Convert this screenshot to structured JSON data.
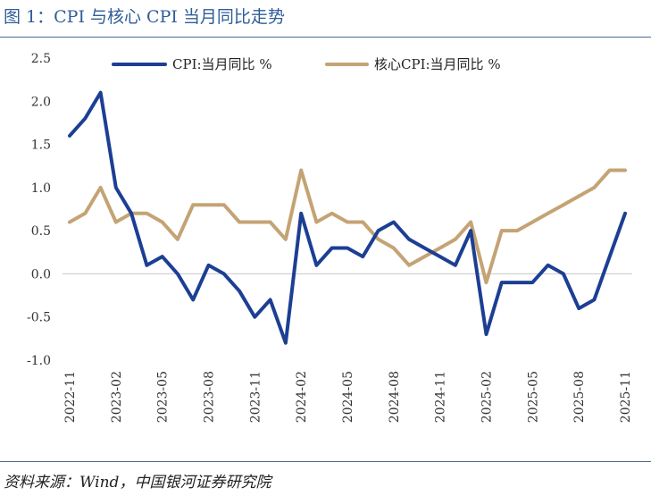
{
  "figure": {
    "title": "图 1：CPI 与核心 CPI 当月同比走势",
    "source": "资料来源：Wind，中国银河证券研究院"
  },
  "chart_data": {
    "type": "line",
    "title": "CPI 与核心 CPI 当月同比走势",
    "xlabel": "",
    "ylabel": "",
    "ylim": [
      -1.0,
      2.5
    ],
    "yticks": [
      -1.0,
      -0.5,
      0.0,
      0.5,
      1.0,
      1.5,
      2.0,
      2.5
    ],
    "ytick_labels": [
      "-1.0",
      "-0.5",
      "0.0",
      "0.5",
      "1.0",
      "1.5",
      "2.0",
      "2.5"
    ],
    "grid": false,
    "legend_position": "top",
    "x": [
      "2022-11",
      "2022-12",
      "2023-01",
      "2023-02",
      "2023-03",
      "2023-04",
      "2023-05",
      "2023-06",
      "2023-07",
      "2023-08",
      "2023-09",
      "2023-10",
      "2023-11",
      "2023-12",
      "2024-01",
      "2024-02",
      "2024-03",
      "2024-04",
      "2024-05",
      "2024-06",
      "2024-07",
      "2024-08",
      "2024-09",
      "2024-10",
      "2024-11",
      "2024-12",
      "2025-01",
      "2025-02",
      "2025-03",
      "2025-04",
      "2025-05",
      "2025-06",
      "2025-07",
      "2025-08",
      "2025-09",
      "2025-10",
      "2025-11"
    ],
    "x_tick_labels": [
      "2022-11",
      "2023-02",
      "2023-05",
      "2023-08",
      "2023-11",
      "2024-02",
      "2024-05",
      "2024-08",
      "2024-11",
      "2025-02",
      "2025-05",
      "2025-08",
      "2025-11"
    ],
    "series": [
      {
        "name": "CPI:当月同比 %",
        "color": "#1c3f94",
        "values": [
          1.6,
          1.8,
          2.1,
          1.0,
          0.7,
          0.1,
          0.2,
          0.0,
          -0.3,
          0.1,
          0.0,
          -0.2,
          -0.5,
          -0.3,
          -0.8,
          0.7,
          0.1,
          0.3,
          0.3,
          0.2,
          0.5,
          0.6,
          0.4,
          0.3,
          0.2,
          0.1,
          0.5,
          -0.7,
          -0.1,
          -0.1,
          -0.1,
          0.1,
          0.0,
          -0.4,
          -0.3,
          0.2,
          0.7
        ]
      },
      {
        "name": "核心CPI:当月同比 %",
        "color": "#c4a374",
        "values": [
          0.6,
          0.7,
          1.0,
          0.6,
          0.7,
          0.7,
          0.6,
          0.4,
          0.8,
          0.8,
          0.8,
          0.6,
          0.6,
          0.6,
          0.4,
          1.2,
          0.6,
          0.7,
          0.6,
          0.6,
          0.4,
          0.3,
          0.1,
          0.2,
          0.3,
          0.4,
          0.6,
          -0.1,
          0.5,
          0.5,
          0.6,
          0.7,
          0.8,
          0.9,
          1.0,
          1.2,
          1.2
        ]
      }
    ]
  }
}
